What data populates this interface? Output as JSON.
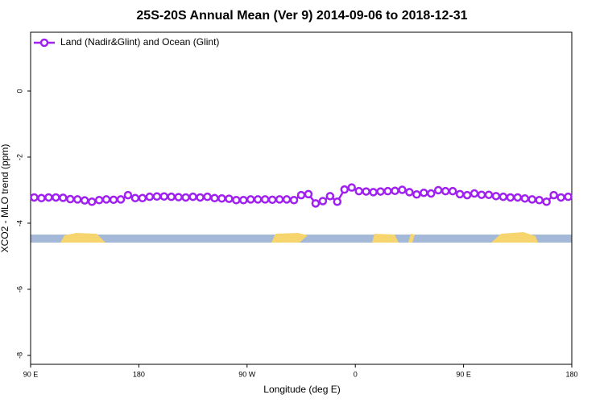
{
  "chart_data": {
    "type": "line",
    "title": "25S-20S Annual Mean (Ver 9)   2014-09-06 to 2018-12-31",
    "xlabel": "Longitude (deg E)",
    "ylabel": "XCO2 - MLO trend (ppm)",
    "xlim": [
      90,
      540
    ],
    "ylim": [
      -8.27,
      1.78
    ],
    "xticks": [
      {
        "value": 90,
        "label": "90 E"
      },
      180,
      {
        "value": 270,
        "label": "90 W"
      },
      {
        "value": 360,
        "label": "0"
      },
      {
        "value": 450,
        "label": "90 E"
      },
      {
        "value": 540,
        "label": "180"
      }
    ],
    "yticks": [
      -8,
      -6,
      -4,
      -2,
      0
    ],
    "legend": "top-left",
    "x": [
      93,
      99,
      105,
      111,
      117,
      123,
      129,
      135,
      141,
      147,
      153,
      159,
      165,
      171,
      177,
      183,
      189,
      195,
      201,
      207,
      213,
      219,
      225,
      231,
      237,
      243,
      249,
      255,
      261,
      267,
      273,
      279,
      285,
      291,
      297,
      303,
      309,
      315,
      321,
      327,
      333,
      339,
      345,
      351,
      357,
      363,
      369,
      375,
      381,
      387,
      393,
      399,
      405,
      411,
      417,
      423,
      429,
      435,
      441,
      447,
      453,
      459,
      465,
      471,
      477,
      483,
      489,
      495,
      501,
      507,
      513,
      519,
      525,
      531,
      537
    ],
    "series": [
      {
        "name": "Land (Nadir&Glint) and Ocean (Glint)",
        "color": "#a020f0",
        "values": [
          -3.22,
          -3.24,
          -3.22,
          -3.22,
          -3.23,
          -3.27,
          -3.28,
          -3.31,
          -3.35,
          -3.3,
          -3.28,
          -3.29,
          -3.28,
          -3.15,
          -3.24,
          -3.24,
          -3.2,
          -3.19,
          -3.19,
          -3.2,
          -3.21,
          -3.22,
          -3.2,
          -3.22,
          -3.2,
          -3.24,
          -3.25,
          -3.26,
          -3.3,
          -3.3,
          -3.28,
          -3.28,
          -3.28,
          -3.29,
          -3.28,
          -3.28,
          -3.3,
          -3.15,
          -3.12,
          -3.4,
          -3.33,
          -3.18,
          -3.35,
          -2.98,
          -2.92,
          -3.03,
          -3.04,
          -3.06,
          -3.04,
          -3.03,
          -3.02,
          -2.99,
          -3.06,
          -3.13,
          -3.08,
          -3.1,
          -3.0,
          -3.03,
          -3.03,
          -3.12,
          -3.15,
          -3.1,
          -3.14,
          -3.14,
          -3.18,
          -3.2,
          -3.22,
          -3.22,
          -3.25,
          -3.28,
          -3.3,
          -3.35,
          -3.15,
          -3.22,
          -3.2
        ]
      }
    ]
  }
}
